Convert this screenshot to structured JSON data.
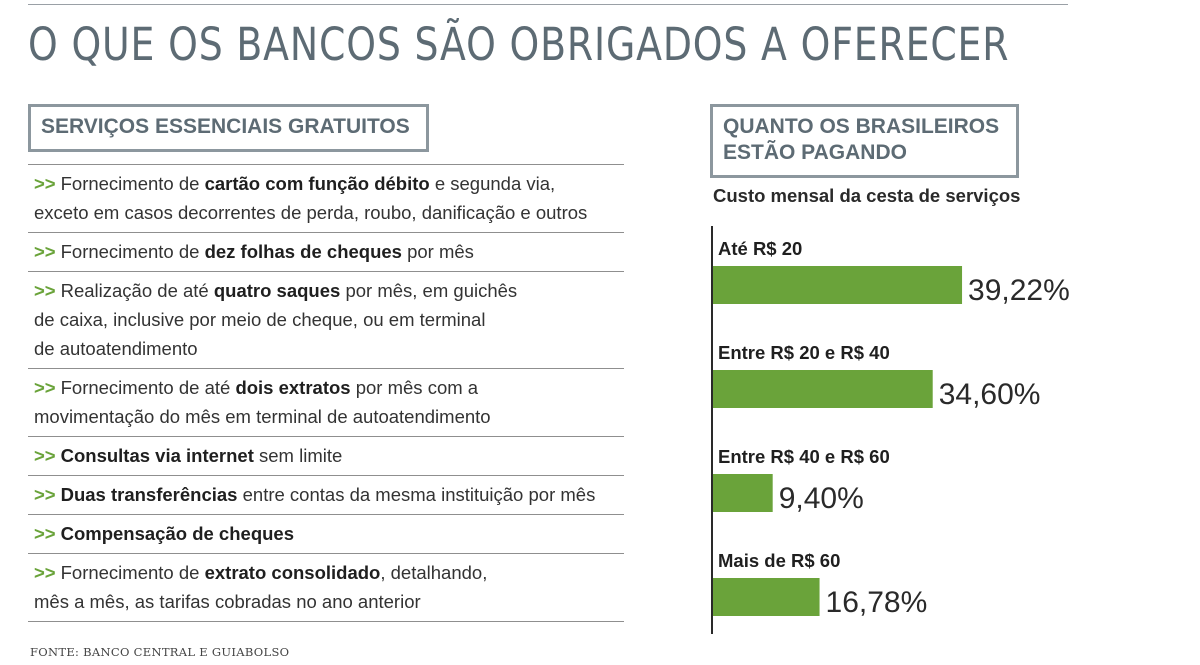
{
  "title": "O QUE OS BANCOS SÃO OBRIGADOS A OFERECER",
  "services_heading": "SERVIÇOS ESSENCIAIS GRATUITOS",
  "marker": ">>",
  "services": [
    [
      [
        "Fornecimento de ",
        "cartão com função débito",
        " e segunda via,"
      ],
      [
        "exceto em casos decorrentes de perda, roubo, danificação e outros"
      ]
    ],
    [
      [
        "Fornecimento de ",
        "dez folhas de cheques",
        " por mês"
      ]
    ],
    [
      [
        "Realização de até ",
        "quatro saques",
        " por mês, em guichês"
      ],
      [
        "de caixa, inclusive por meio de cheque, ou em terminal"
      ],
      [
        "de autoatendimento"
      ]
    ],
    [
      [
        "Fornecimento de até ",
        "dois extratos",
        " por mês com a"
      ],
      [
        "movimentação do mês em terminal de autoatendimento"
      ]
    ],
    [
      [
        "",
        "Consultas via internet",
        " sem limite"
      ]
    ],
    [
      [
        "",
        "Duas transferências",
        " entre contas da mesma instituição por mês"
      ]
    ],
    [
      [
        "",
        "Compensação de cheques",
        ""
      ]
    ],
    [
      [
        "Fornecimento de ",
        "extrato consolidado",
        ", detalhando,"
      ],
      [
        "mês a mês, as tarifas cobradas no ano anterior"
      ]
    ]
  ],
  "source": "FONTE: BANCO CENTRAL E GUIABOLSO",
  "chart_heading": [
    "QUANTO OS BRASILEIROS",
    "ESTÃO PAGANDO"
  ],
  "chart_data": {
    "type": "bar",
    "orientation": "horizontal",
    "title": "Custo mensal da cesta de serviços",
    "categories": [
      "Até R$ 20",
      "Entre R$ 20 e R$ 40",
      "Entre R$ 40 e R$ 60",
      "Mais de R$ 60"
    ],
    "values": [
      39.22,
      34.6,
      9.4,
      16.78
    ],
    "value_labels": [
      "39,22%",
      "34,60%",
      "9,40%",
      "16,78%"
    ],
    "unit": "%",
    "color": "#6aa33a",
    "grid": false,
    "legend": "none"
  }
}
